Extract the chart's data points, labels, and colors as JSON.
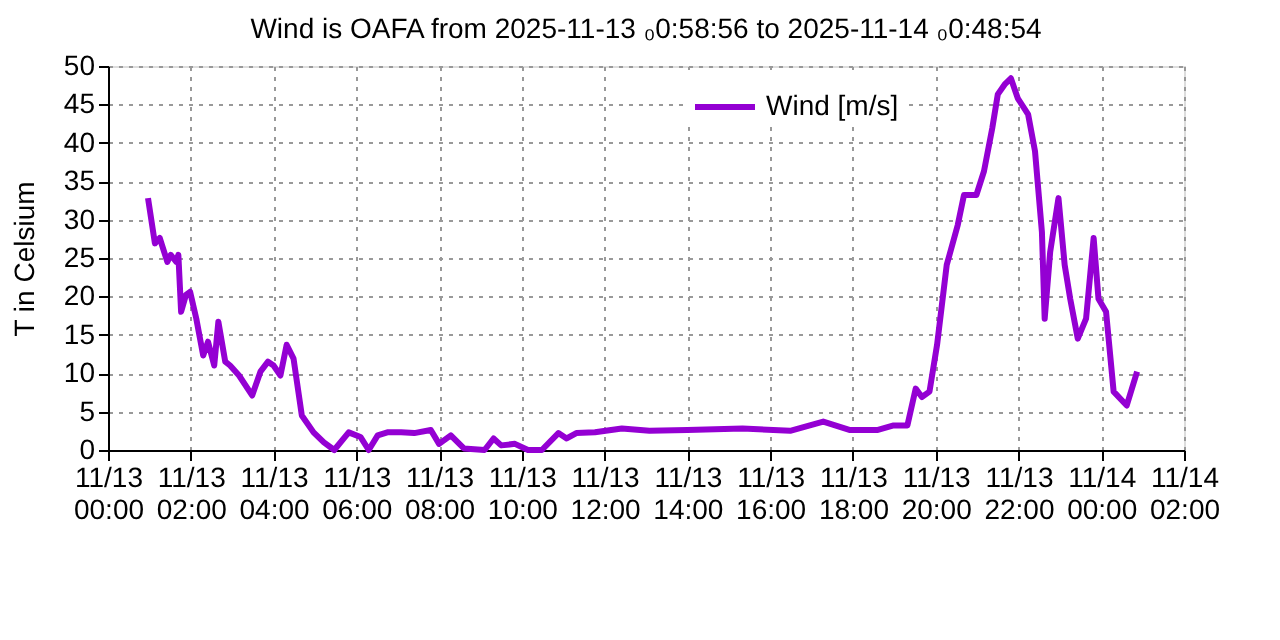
{
  "chart_data": {
    "type": "line",
    "title": "Wind is OAFA from 2025-11-13 ₀0:58:56 to 2025-11-14 ₀0:48:54",
    "ylabel": "T in Celsium",
    "xlim": [
      "2025-11-13T00:00",
      "2025-11-14T02:00"
    ],
    "xticks": [
      {
        "value": "2025-11-13T00:00",
        "label": "11/13\n00:00"
      },
      {
        "value": "2025-11-13T02:00",
        "label": "11/13\n02:00"
      },
      {
        "value": "2025-11-13T04:00",
        "label": "11/13\n04:00"
      },
      {
        "value": "2025-11-13T06:00",
        "label": "11/13\n06:00"
      },
      {
        "value": "2025-11-13T08:00",
        "label": "11/13\n08:00"
      },
      {
        "value": "2025-11-13T10:00",
        "label": "11/13\n10:00"
      },
      {
        "value": "2025-11-13T12:00",
        "label": "11/13\n12:00"
      },
      {
        "value": "2025-11-13T14:00",
        "label": "11/13\n14:00"
      },
      {
        "value": "2025-11-13T16:00",
        "label": "11/13\n16:00"
      },
      {
        "value": "2025-11-13T18:00",
        "label": "11/13\n18:00"
      },
      {
        "value": "2025-11-13T20:00",
        "label": "11/13\n20:00"
      },
      {
        "value": "2025-11-13T22:00",
        "label": "11/13\n22:00"
      },
      {
        "value": "2025-11-14T00:00",
        "label": "11/14\n00:00"
      },
      {
        "value": "2025-11-14T02:00",
        "label": "11/14\n02:00"
      }
    ],
    "ylim": [
      0,
      50
    ],
    "yticks": [
      0,
      5,
      10,
      15,
      20,
      25,
      30,
      35,
      40,
      45,
      50
    ],
    "grid": true,
    "legend": "top right",
    "line_style": "solid",
    "marker": "none",
    "series": [
      {
        "name": "Wind [m/s]",
        "color": "#9400d3",
        "x": [
          "2025-11-13T00:58",
          "2025-11-13T01:08",
          "2025-11-13T01:15",
          "2025-11-13T01:26",
          "2025-11-13T01:31",
          "2025-11-13T01:39",
          "2025-11-13T01:42",
          "2025-11-13T01:46",
          "2025-11-13T01:53",
          "2025-11-13T01:59",
          "2025-11-13T02:08",
          "2025-11-13T02:18",
          "2025-11-13T02:25",
          "2025-11-13T02:34",
          "2025-11-13T02:40",
          "2025-11-13T02:50",
          "2025-11-13T02:57",
          "2025-11-13T03:10",
          "2025-11-13T03:29",
          "2025-11-13T03:41",
          "2025-11-13T03:52",
          "2025-11-13T04:00",
          "2025-11-13T04:10",
          "2025-11-13T04:19",
          "2025-11-13T04:29",
          "2025-11-13T04:41",
          "2025-11-13T04:58",
          "2025-11-13T05:13",
          "2025-11-13T05:28",
          "2025-11-13T05:49",
          "2025-11-13T06:06",
          "2025-11-13T06:18",
          "2025-11-13T06:31",
          "2025-11-13T06:45",
          "2025-11-13T07:05",
          "2025-11-13T07:24",
          "2025-11-13T07:48",
          "2025-11-13T08:00",
          "2025-11-13T08:17",
          "2025-11-13T08:36",
          "2025-11-13T09:06",
          "2025-11-13T09:19",
          "2025-11-13T09:30",
          "2025-11-13T09:50",
          "2025-11-13T10:09",
          "2025-11-13T10:29",
          "2025-11-13T10:53",
          "2025-11-13T11:05",
          "2025-11-13T11:19",
          "2025-11-13T11:46",
          "2025-11-13T12:25",
          "2025-11-13T13:05",
          "2025-11-13T14:00",
          "2025-11-13T15:20",
          "2025-11-13T16:29",
          "2025-11-13T17:17",
          "2025-11-13T17:56",
          "2025-11-13T18:35",
          "2025-11-13T18:59",
          "2025-11-13T19:19",
          "2025-11-13T19:31",
          "2025-11-13T19:40",
          "2025-11-13T19:51",
          "2025-11-13T20:02",
          "2025-11-13T20:16",
          "2025-11-13T20:32",
          "2025-11-13T20:41",
          "2025-11-13T20:59",
          "2025-11-13T21:10",
          "2025-11-13T21:22",
          "2025-11-13T21:30",
          "2025-11-13T21:40",
          "2025-11-13T21:49",
          "2025-11-13T21:59",
          "2025-11-13T22:14",
          "2025-11-13T22:24",
          "2025-11-13T22:34",
          "2025-11-13T22:38",
          "2025-11-13T22:46",
          "2025-11-13T22:58",
          "2025-11-13T23:07",
          "2025-11-13T23:15",
          "2025-11-13T23:26",
          "2025-11-13T23:38",
          "2025-11-13T23:49",
          "2025-11-13T23:56",
          "2025-11-14T00:07",
          "2025-11-14T00:18",
          "2025-11-14T00:37",
          "2025-11-14T00:52"
        ],
        "values": [
          32.8,
          26.9,
          27.6,
          24.5,
          25.4,
          24.5,
          25.4,
          18.0,
          20.2,
          20.6,
          17.1,
          12.3,
          14.1,
          11.0,
          16.7,
          11.5,
          11.0,
          9.7,
          7.1,
          10.2,
          11.5,
          11.0,
          9.7,
          13.7,
          11.9,
          4.5,
          2.3,
          1.0,
          0.0,
          2.3,
          1.7,
          0.0,
          1.9,
          2.3,
          2.3,
          2.2,
          2.6,
          0.8,
          1.9,
          0.2,
          0.0,
          1.5,
          0.6,
          0.8,
          0.0,
          0.0,
          2.2,
          1.5,
          2.2,
          2.3,
          2.8,
          2.5,
          2.6,
          2.8,
          2.5,
          3.7,
          2.6,
          2.6,
          3.2,
          3.2,
          8.0,
          6.9,
          7.6,
          13.7,
          24.1,
          29.3,
          33.2,
          33.2,
          36.3,
          41.9,
          46.3,
          47.6,
          48.4,
          45.8,
          43.7,
          38.9,
          28.4,
          17.1,
          25.8,
          32.8,
          24.1,
          19.7,
          14.5,
          17.1,
          27.6,
          19.7,
          18.0,
          7.6,
          5.8,
          10.2
        ]
      }
    ]
  }
}
